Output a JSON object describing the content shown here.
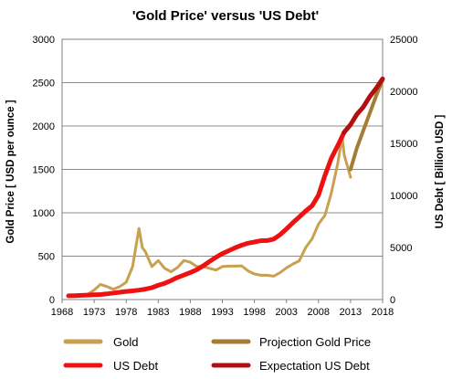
{
  "chart_data": {
    "type": "line",
    "title": "'Gold Price' versus 'US Debt'",
    "xlabel": "",
    "ylabel_left": "Gold Price [ USD per ounce ]",
    "ylabel_right": "US Debt [ Billion USD ]",
    "xlim": [
      1968,
      2018
    ],
    "ylim_left": [
      0,
      3000
    ],
    "ylim_right": [
      0,
      25000
    ],
    "x_ticks": [
      1968,
      1973,
      1978,
      1983,
      1988,
      1993,
      1998,
      2003,
      2008,
      2013,
      2018
    ],
    "y_ticks_left": [
      0,
      500,
      1000,
      1500,
      2000,
      2500,
      3000
    ],
    "y_ticks_right": [
      0,
      5000,
      10000,
      15000,
      20000,
      25000
    ],
    "grid": true,
    "legend_position": "bottom",
    "series": [
      {
        "name": "Gold",
        "axis": "left",
        "color": "#c8a050",
        "points": [
          [
            1969,
            40
          ],
          [
            1970,
            36
          ],
          [
            1971,
            42
          ],
          [
            1972,
            60
          ],
          [
            1973,
            110
          ],
          [
            1974,
            175
          ],
          [
            1975,
            150
          ],
          [
            1976,
            120
          ],
          [
            1977,
            150
          ],
          [
            1978,
            200
          ],
          [
            1979,
            380
          ],
          [
            1980,
            820
          ],
          [
            1980.5,
            600
          ],
          [
            1981,
            550
          ],
          [
            1982,
            380
          ],
          [
            1983,
            450
          ],
          [
            1984,
            360
          ],
          [
            1985,
            320
          ],
          [
            1986,
            370
          ],
          [
            1987,
            450
          ],
          [
            1988,
            430
          ],
          [
            1989,
            380
          ],
          [
            1990,
            380
          ],
          [
            1991,
            360
          ],
          [
            1992,
            340
          ],
          [
            1993,
            380
          ],
          [
            1994,
            385
          ],
          [
            1995,
            385
          ],
          [
            1996,
            388
          ],
          [
            1997,
            330
          ],
          [
            1998,
            295
          ],
          [
            1999,
            280
          ],
          [
            2000,
            280
          ],
          [
            2001,
            270
          ],
          [
            2002,
            310
          ],
          [
            2003,
            365
          ],
          [
            2004,
            410
          ],
          [
            2005,
            445
          ],
          [
            2006,
            600
          ],
          [
            2007,
            700
          ],
          [
            2008,
            870
          ],
          [
            2009,
            970
          ],
          [
            2010,
            1225
          ],
          [
            2011,
            1570
          ],
          [
            2011.7,
            1880
          ],
          [
            2012,
            1670
          ],
          [
            2013,
            1410
          ]
        ]
      },
      {
        "name": "Projection Gold Price",
        "axis": "left",
        "color": "#a67c35",
        "points": [
          [
            2013,
            1500
          ],
          [
            2014,
            1750
          ],
          [
            2015,
            1950
          ],
          [
            2016,
            2150
          ],
          [
            2017,
            2350
          ],
          [
            2018,
            2530
          ]
        ]
      },
      {
        "name": "US Debt",
        "axis": "right",
        "color": "#ee1111",
        "points": [
          [
            1969,
            360
          ],
          [
            1970,
            380
          ],
          [
            1971,
            400
          ],
          [
            1972,
            430
          ],
          [
            1973,
            460
          ],
          [
            1974,
            480
          ],
          [
            1975,
            540
          ],
          [
            1976,
            630
          ],
          [
            1977,
            700
          ],
          [
            1978,
            780
          ],
          [
            1979,
            830
          ],
          [
            1980,
            900
          ],
          [
            1981,
            1000
          ],
          [
            1982,
            1140
          ],
          [
            1983,
            1370
          ],
          [
            1984,
            1560
          ],
          [
            1985,
            1820
          ],
          [
            1986,
            2120
          ],
          [
            1987,
            2350
          ],
          [
            1988,
            2600
          ],
          [
            1989,
            2860
          ],
          [
            1990,
            3230
          ],
          [
            1991,
            3660
          ],
          [
            1992,
            4060
          ],
          [
            1993,
            4410
          ],
          [
            1994,
            4690
          ],
          [
            1995,
            4970
          ],
          [
            1996,
            5220
          ],
          [
            1997,
            5410
          ],
          [
            1998,
            5530
          ],
          [
            1999,
            5650
          ],
          [
            2000,
            5670
          ],
          [
            2001,
            5810
          ],
          [
            2002,
            6230
          ],
          [
            2003,
            6780
          ],
          [
            2004,
            7380
          ],
          [
            2005,
            7930
          ],
          [
            2006,
            8510
          ],
          [
            2007,
            9010
          ],
          [
            2008,
            10030
          ],
          [
            2009,
            11910
          ],
          [
            2010,
            13560
          ],
          [
            2011,
            14790
          ],
          [
            2012,
            16070
          ]
        ]
      },
      {
        "name": "Expectation US Debt",
        "axis": "right",
        "color": "#b01010",
        "points": [
          [
            2012,
            16070
          ],
          [
            2013,
            16800
          ],
          [
            2014,
            17800
          ],
          [
            2015,
            18500
          ],
          [
            2016,
            19500
          ],
          [
            2017,
            20300
          ],
          [
            2018,
            21200
          ]
        ]
      }
    ]
  }
}
